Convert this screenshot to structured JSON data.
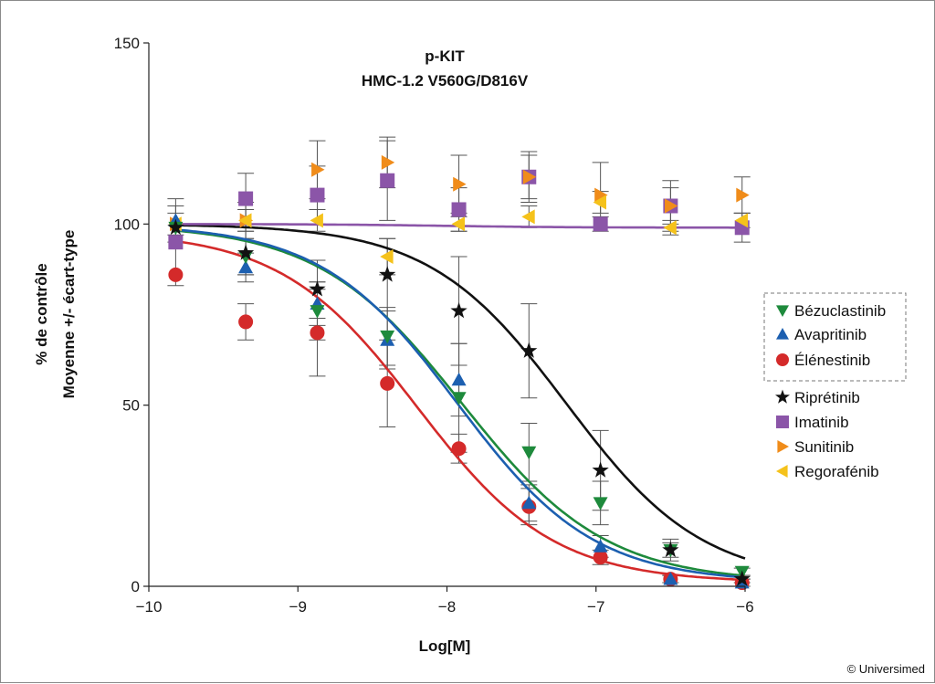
{
  "chart_data": {
    "type": "scatter",
    "title": "p-KIT",
    "subtitle": "HMC-1.2 V560G/D816V",
    "xlabel": "Log[M]",
    "ylabel_line1": "% de contrôle",
    "ylabel_line2": "Moyenne +/- écart-type",
    "xlim": [
      -10,
      -6
    ],
    "ylim": [
      0,
      150
    ],
    "x_ticks": [
      -10,
      -9,
      -8,
      -7,
      -6
    ],
    "x_tick_labels": [
      "−10",
      "−9",
      "−8",
      "−7",
      "−6"
    ],
    "y_ticks": [
      0,
      50,
      100,
      150
    ],
    "y_tick_labels": [
      "0",
      "50",
      "100",
      "150"
    ],
    "grid": false,
    "legend_position": "right",
    "series": [
      {
        "name": "Bézuclastinib",
        "color": "#1e8a3c",
        "marker": "triangle-down",
        "boxed": true,
        "points": [
          {
            "x": -9.82,
            "y": 99,
            "err": 0
          },
          {
            "x": -9.35,
            "y": 91,
            "err": 5
          },
          {
            "x": -8.87,
            "y": 76,
            "err": 8
          },
          {
            "x": -8.4,
            "y": 69,
            "err": 8
          },
          {
            "x": -7.92,
            "y": 52,
            "err": 15
          },
          {
            "x": -7.45,
            "y": 37,
            "err": 8
          },
          {
            "x": -6.97,
            "y": 23,
            "err": 6
          },
          {
            "x": -6.5,
            "y": 10,
            "err": 2
          },
          {
            "x": -6.02,
            "y": 4,
            "err": 1
          }
        ],
        "fit": {
          "top": 100,
          "bottom": 1,
          "log_ic50": -7.9,
          "hill": 0.9
        }
      },
      {
        "name": "Avapritinib",
        "color": "#1c5fb0",
        "marker": "triangle-up",
        "boxed": true,
        "points": [
          {
            "x": -9.82,
            "y": 101,
            "err": 0
          },
          {
            "x": -9.35,
            "y": 88,
            "err": 4
          },
          {
            "x": -8.87,
            "y": 78,
            "err": 6
          },
          {
            "x": -8.4,
            "y": 68,
            "err": 8
          },
          {
            "x": -7.92,
            "y": 57,
            "err": 10
          },
          {
            "x": -7.45,
            "y": 23,
            "err": 5
          },
          {
            "x": -6.97,
            "y": 11,
            "err": 3
          },
          {
            "x": -6.5,
            "y": 2,
            "err": 1
          },
          {
            "x": -6.02,
            "y": 1,
            "err": 1
          }
        ],
        "fit": {
          "top": 100,
          "bottom": 1,
          "log_ic50": -7.93,
          "hill": 0.95
        }
      },
      {
        "name": "Élénestinib",
        "color": "#d42a2a",
        "marker": "circle",
        "boxed": true,
        "points": [
          {
            "x": -9.82,
            "y": 86,
            "err": 0
          },
          {
            "x": -9.35,
            "y": 73,
            "err": 5
          },
          {
            "x": -8.87,
            "y": 70,
            "err": 12
          },
          {
            "x": -8.4,
            "y": 56,
            "err": 12
          },
          {
            "x": -7.92,
            "y": 38,
            "err": 4
          },
          {
            "x": -7.45,
            "y": 22,
            "err": 5
          },
          {
            "x": -6.97,
            "y": 8,
            "err": 2
          },
          {
            "x": -6.5,
            "y": 2,
            "err": 1
          },
          {
            "x": -6.02,
            "y": 1,
            "err": 1
          }
        ],
        "fit": {
          "top": 98,
          "bottom": 1,
          "log_ic50": -8.2,
          "hill": 0.95
        }
      },
      {
        "name": "Riprétinib",
        "color": "#111111",
        "marker": "star",
        "boxed": false,
        "points": [
          {
            "x": -9.82,
            "y": 99,
            "err": 0
          },
          {
            "x": -9.35,
            "y": 92,
            "err": 6
          },
          {
            "x": -8.87,
            "y": 82,
            "err": 8
          },
          {
            "x": -8.4,
            "y": 86,
            "err": 10
          },
          {
            "x": -7.92,
            "y": 76,
            "err": 15
          },
          {
            "x": -7.45,
            "y": 65,
            "err": 13
          },
          {
            "x": -6.97,
            "y": 32,
            "err": 11
          },
          {
            "x": -6.5,
            "y": 10,
            "err": 3
          },
          {
            "x": -6.02,
            "y": 2,
            "err": 1
          }
        ],
        "fit": {
          "top": 100,
          "bottom": 1,
          "log_ic50": -7.2,
          "hill": 0.95
        }
      },
      {
        "name": "Imatinib",
        "color": "#8b55a8",
        "marker": "square",
        "boxed": false,
        "points": [
          {
            "x": -9.82,
            "y": 95,
            "err": 12
          },
          {
            "x": -9.35,
            "y": 107,
            "err": 7
          },
          {
            "x": -8.87,
            "y": 108,
            "err": 8
          },
          {
            "x": -8.4,
            "y": 112,
            "err": 11
          },
          {
            "x": -7.92,
            "y": 104,
            "err": 6
          },
          {
            "x": -7.45,
            "y": 113,
            "err": 7
          },
          {
            "x": -6.97,
            "y": 100,
            "err": 2
          },
          {
            "x": -6.5,
            "y": 105,
            "err": 7
          },
          {
            "x": -6.02,
            "y": 99,
            "err": 4
          }
        ],
        "fit": {
          "top": 100,
          "bottom": 99,
          "log_ic50": -8,
          "hill": 1
        }
      },
      {
        "name": "Sunitinib",
        "color": "#f08c1a",
        "marker": "triangle-right",
        "boxed": false,
        "points": [
          {
            "x": -9.82,
            "y": 100,
            "err": 5
          },
          {
            "x": -9.35,
            "y": 101,
            "err": 5
          },
          {
            "x": -8.87,
            "y": 115,
            "err": 8
          },
          {
            "x": -8.4,
            "y": 117,
            "err": 7
          },
          {
            "x": -7.92,
            "y": 111,
            "err": 8
          },
          {
            "x": -7.45,
            "y": 113,
            "err": 6
          },
          {
            "x": -6.97,
            "y": 108,
            "err": 9
          },
          {
            "x": -6.5,
            "y": 105,
            "err": 5
          },
          {
            "x": -6.02,
            "y": 108,
            "err": 5
          }
        ]
      },
      {
        "name": "Regorafénib",
        "color": "#f5c21b",
        "marker": "triangle-left",
        "boxed": false,
        "points": [
          {
            "x": -9.82,
            "y": 100,
            "err": 3
          },
          {
            "x": -9.35,
            "y": 101,
            "err": 3
          },
          {
            "x": -8.87,
            "y": 101,
            "err": 3
          },
          {
            "x": -8.4,
            "y": 91,
            "err": 5
          },
          {
            "x": -7.92,
            "y": 100,
            "err": 2
          },
          {
            "x": -7.45,
            "y": 102,
            "err": 3
          },
          {
            "x": -6.97,
            "y": 106,
            "err": 3
          },
          {
            "x": -6.5,
            "y": 99,
            "err": 2
          },
          {
            "x": -6.02,
            "y": 101,
            "err": 2
          }
        ]
      }
    ]
  },
  "credit": "© Universimed"
}
